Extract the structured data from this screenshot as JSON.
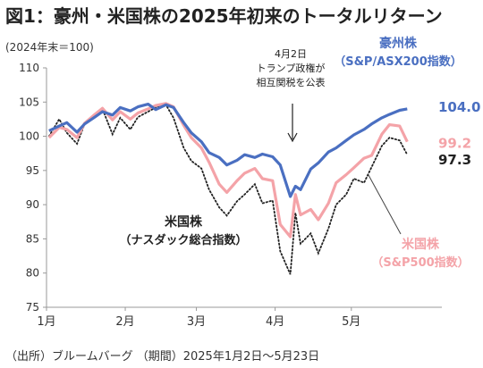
{
  "title": "図1：豪州・米国株の2025年初来のトータルリターン",
  "unit_label": "(2024年末＝100)",
  "source": "（出所）ブルームバーグ （期間）2025年1月2日～5月23日",
  "annotation": [
    "4月2日",
    "トランプ政権が",
    "相互関税を公表"
  ],
  "colors": {
    "australia": "#4a6fc1",
    "sp500": "#f4a3a8",
    "nasdaq": "#222222",
    "axis": "#999999"
  },
  "chart_data": {
    "type": "line",
    "title": "図1：豪州・米国株の2025年初来のトータルリターン",
    "ylabel": "(2024年末＝100)",
    "xlabel": "",
    "ylim": [
      75,
      110
    ],
    "xlim": [
      "2025-01-01",
      "2025-05-31"
    ],
    "grid": false,
    "x_ticks": [
      {
        "date": "2025-01-01",
        "label": "1月"
      },
      {
        "date": "2025-02-01",
        "label": "2月"
      },
      {
        "date": "2025-03-01",
        "label": "3月"
      },
      {
        "date": "2025-04-01",
        "label": "4月"
      },
      {
        "date": "2025-05-01",
        "label": "5月"
      }
    ],
    "y_ticks": [
      75,
      80,
      85,
      90,
      95,
      100,
      105,
      110
    ],
    "series": [
      {
        "name": "豪州株",
        "sublabel": "（S&P/ASX200指数）",
        "style": "solid-thick",
        "end_label": "104.0",
        "x": [
          "2025-01-02",
          "2025-01-06",
          "2025-01-09",
          "2025-01-13",
          "2025-01-16",
          "2025-01-20",
          "2025-01-23",
          "2025-01-27",
          "2025-01-30",
          "2025-02-03",
          "2025-02-06",
          "2025-02-10",
          "2025-02-13",
          "2025-02-17",
          "2025-02-20",
          "2025-02-24",
          "2025-02-27",
          "2025-03-03",
          "2025-03-06",
          "2025-03-10",
          "2025-03-13",
          "2025-03-17",
          "2025-03-20",
          "2025-03-24",
          "2025-03-27",
          "2025-03-31",
          "2025-04-03",
          "2025-04-07",
          "2025-04-09",
          "2025-04-11",
          "2025-04-15",
          "2025-04-18",
          "2025-04-22",
          "2025-04-25",
          "2025-04-29",
          "2025-05-02",
          "2025-05-06",
          "2025-05-09",
          "2025-05-13",
          "2025-05-16",
          "2025-05-20",
          "2025-05-23"
        ],
        "values": [
          100.8,
          101.5,
          102.0,
          100.6,
          101.8,
          102.8,
          103.6,
          103.1,
          104.2,
          103.7,
          104.3,
          104.7,
          103.9,
          104.6,
          104.2,
          102.0,
          100.5,
          99.2,
          97.6,
          96.9,
          95.8,
          96.5,
          97.3,
          96.9,
          97.4,
          97.0,
          95.8,
          91.2,
          92.7,
          92.2,
          95.2,
          96.1,
          97.7,
          98.3,
          99.4,
          100.2,
          101.0,
          101.8,
          102.7,
          103.2,
          103.8,
          104.0
        ]
      },
      {
        "name": "米国株",
        "sublabel": "（S&P500指数）",
        "style": "solid-pink",
        "end_label": "99.2",
        "x": [
          "2025-01-02",
          "2025-01-06",
          "2025-01-09",
          "2025-01-13",
          "2025-01-16",
          "2025-01-20",
          "2025-01-23",
          "2025-01-27",
          "2025-01-30",
          "2025-02-03",
          "2025-02-06",
          "2025-02-10",
          "2025-02-13",
          "2025-02-17",
          "2025-02-20",
          "2025-02-24",
          "2025-02-27",
          "2025-03-03",
          "2025-03-06",
          "2025-03-10",
          "2025-03-13",
          "2025-03-17",
          "2025-03-20",
          "2025-03-24",
          "2025-03-27",
          "2025-03-31",
          "2025-04-03",
          "2025-04-07",
          "2025-04-09",
          "2025-04-11",
          "2025-04-15",
          "2025-04-18",
          "2025-04-22",
          "2025-04-25",
          "2025-04-29",
          "2025-05-02",
          "2025-05-06",
          "2025-05-09",
          "2025-05-13",
          "2025-05-16",
          "2025-05-20",
          "2025-05-23"
        ],
        "values": [
          99.8,
          101.3,
          101.0,
          99.8,
          101.9,
          103.2,
          104.1,
          102.4,
          103.6,
          102.5,
          103.4,
          104.0,
          104.5,
          104.8,
          104.3,
          101.6,
          99.8,
          98.3,
          96.2,
          93.0,
          91.8,
          93.5,
          94.6,
          95.3,
          93.8,
          93.5,
          87.1,
          85.3,
          91.5,
          88.5,
          89.3,
          87.8,
          90.2,
          93.2,
          94.4,
          95.4,
          96.8,
          97.2,
          100.3,
          101.7,
          101.5,
          99.2
        ]
      },
      {
        "name": "米国株",
        "sublabel": "（ナスダック総合指数）",
        "style": "dotted-black",
        "end_label": "97.3",
        "x": [
          "2025-01-02",
          "2025-01-06",
          "2025-01-09",
          "2025-01-13",
          "2025-01-16",
          "2025-01-20",
          "2025-01-23",
          "2025-01-27",
          "2025-01-30",
          "2025-02-03",
          "2025-02-06",
          "2025-02-10",
          "2025-02-13",
          "2025-02-17",
          "2025-02-20",
          "2025-02-24",
          "2025-02-27",
          "2025-03-03",
          "2025-03-06",
          "2025-03-10",
          "2025-03-13",
          "2025-03-17",
          "2025-03-20",
          "2025-03-24",
          "2025-03-27",
          "2025-03-31",
          "2025-04-03",
          "2025-04-07",
          "2025-04-09",
          "2025-04-11",
          "2025-04-15",
          "2025-04-18",
          "2025-04-22",
          "2025-04-25",
          "2025-04-29",
          "2025-05-02",
          "2025-05-06",
          "2025-05-09",
          "2025-05-13",
          "2025-05-16",
          "2025-05-20",
          "2025-05-23"
        ],
        "values": [
          100.0,
          102.5,
          100.5,
          98.9,
          101.8,
          102.9,
          104.0,
          100.3,
          102.7,
          101.0,
          102.8,
          103.6,
          104.2,
          104.6,
          102.7,
          98.3,
          96.4,
          95.3,
          92.2,
          89.6,
          88.4,
          90.5,
          91.5,
          93.0,
          90.2,
          90.6,
          83.2,
          79.8,
          88.8,
          84.3,
          85.8,
          82.9,
          86.5,
          90.0,
          91.5,
          93.8,
          93.2,
          95.5,
          98.6,
          99.8,
          99.4,
          97.3
        ]
      }
    ]
  }
}
